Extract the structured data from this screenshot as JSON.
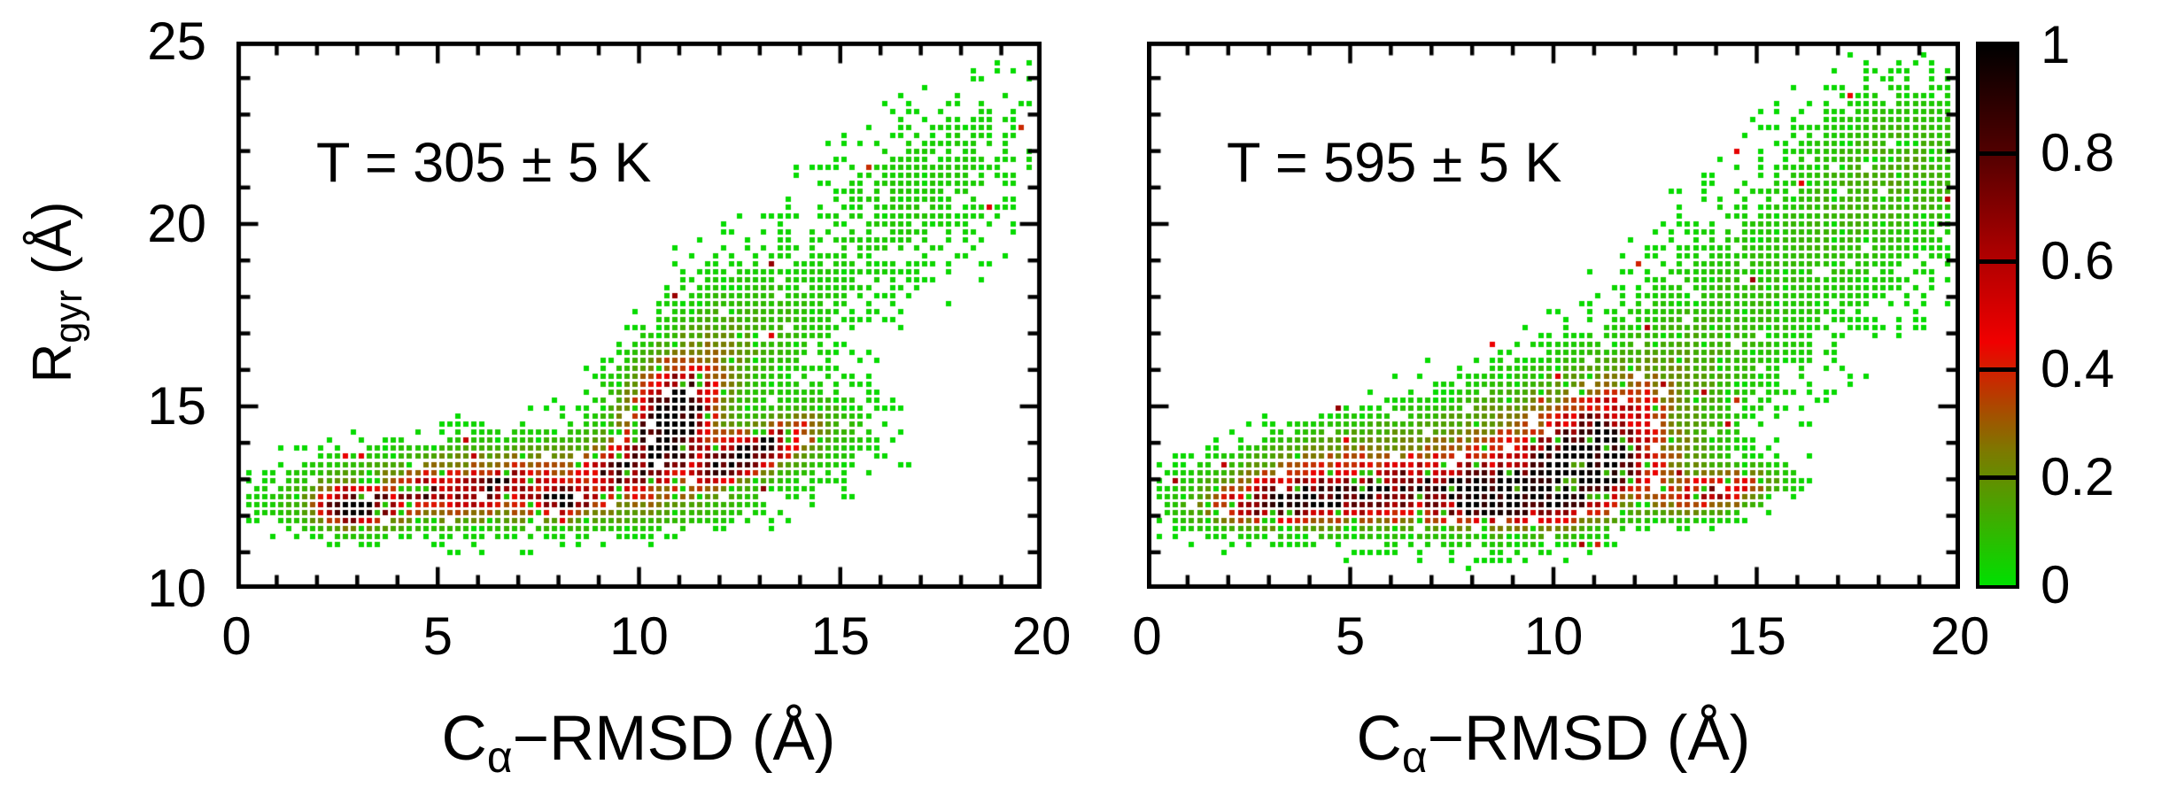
{
  "figure": {
    "background": "#ffffff",
    "axis_color": "#000000"
  },
  "chart_data": {
    "type": "heatmap",
    "subtype": "binned-density-scatter",
    "title": "",
    "x_axis": {
      "label_parts": {
        "base": "C",
        "sub": "α",
        "rest": "−RMSD (Å)"
      },
      "min": 0,
      "max": 20,
      "major_ticks": [
        0,
        5,
        10,
        15,
        20
      ],
      "major_tick_labels": [
        "0",
        "5",
        "10",
        "15",
        "20"
      ],
      "minor_step": 1
    },
    "y_axis": {
      "label_parts": {
        "base": "R",
        "sub": "gyr",
        "rest": " (Å)"
      },
      "min": 10,
      "max": 25,
      "major_ticks": [
        25,
        20,
        15,
        10
      ],
      "major_tick_labels": [
        "25",
        "20",
        "15",
        "10"
      ],
      "minor_step": 1
    },
    "bin_size": {
      "x": 0.2,
      "y": 0.22
    },
    "palette": {
      "stops": [
        [
          0.0,
          [
            0,
            224,
            0
          ]
        ],
        [
          0.25,
          [
            126,
            120,
            0
          ]
        ],
        [
          0.45,
          [
            240,
            0,
            0
          ]
        ],
        [
          0.62,
          [
            170,
            0,
            0
          ]
        ],
        [
          0.8,
          [
            82,
            0,
            0
          ]
        ],
        [
          1.0,
          [
            0,
            0,
            0
          ]
        ]
      ]
    },
    "cluster_format": [
      "center_x_A",
      "center_y_A",
      "sigma_major_A",
      "sigma_minor_A",
      "rotation_deg",
      "peak_density_0to1"
    ],
    "panels": [
      {
        "label": "T = 305 ± 5 K",
        "seed": 1305,
        "clusters": [
          [
            2.95,
            12.25,
            0.55,
            0.3,
            0,
            1.02
          ],
          [
            2.95,
            12.4,
            1.0,
            0.55,
            0,
            0.16
          ],
          [
            4.6,
            12.7,
            0.45,
            0.25,
            10,
            0.42
          ],
          [
            6.4,
            12.8,
            0.8,
            0.28,
            16,
            0.55
          ],
          [
            8.15,
            12.45,
            0.42,
            0.22,
            0,
            0.85
          ],
          [
            9.5,
            13.25,
            0.5,
            0.33,
            10,
            0.55
          ],
          [
            10.8,
            14.55,
            0.78,
            0.5,
            65,
            1.0
          ],
          [
            10.7,
            14.4,
            1.15,
            0.85,
            60,
            0.28
          ],
          [
            13.0,
            13.85,
            0.9,
            0.34,
            22,
            0.78
          ],
          [
            12.2,
            13.45,
            0.55,
            0.3,
            20,
            0.3
          ],
          [
            7.5,
            13.0,
            3.2,
            0.62,
            3,
            0.2
          ],
          [
            8.0,
            13.1,
            3.9,
            0.95,
            5,
            0.09
          ],
          [
            7.5,
            12.35,
            3.0,
            0.4,
            0,
            0.14
          ],
          [
            8.0,
            11.95,
            2.6,
            0.25,
            0,
            0.05
          ],
          [
            5.2,
            13.1,
            1.2,
            0.5,
            10,
            0.1
          ],
          [
            10.9,
            15.7,
            0.9,
            0.7,
            30,
            0.2
          ],
          [
            12.4,
            16.6,
            1.5,
            0.9,
            28,
            0.12
          ],
          [
            11.8,
            13.5,
            0.9,
            0.5,
            20,
            0.13
          ],
          [
            14.5,
            14.5,
            0.9,
            0.8,
            25,
            0.09
          ],
          [
            15.8,
            19.5,
            3.2,
            1.4,
            37,
            0.05
          ],
          [
            17.5,
            21.8,
            2.0,
            1.2,
            35,
            0.035
          ],
          [
            11.8,
            17.9,
            0.9,
            1.0,
            0,
            0.04
          ]
        ]
      },
      {
        "label": "T = 595 ± 5 K",
        "seed": 2595,
        "clusters": [
          [
            3.4,
            12.35,
            1.1,
            0.32,
            4,
            0.6
          ],
          [
            3.6,
            12.75,
            1.5,
            0.55,
            5,
            0.22
          ],
          [
            6.8,
            12.7,
            2.0,
            0.5,
            4,
            0.55
          ],
          [
            8.35,
            12.4,
            0.6,
            0.3,
            5,
            0.75
          ],
          [
            10.6,
            12.95,
            0.95,
            0.55,
            25,
            1.0
          ],
          [
            10.3,
            13.2,
            1.6,
            0.85,
            20,
            0.3
          ],
          [
            11.1,
            14.3,
            1.1,
            0.6,
            42,
            0.45
          ],
          [
            14.0,
            12.65,
            0.9,
            0.35,
            12,
            0.6
          ],
          [
            6.5,
            13.1,
            2.8,
            0.9,
            5,
            0.24
          ],
          [
            10.0,
            14.6,
            2.2,
            1.1,
            15,
            0.2
          ],
          [
            12.8,
            13.3,
            0.9,
            0.55,
            30,
            0.14
          ],
          [
            15.5,
            18.6,
            3.4,
            1.7,
            42,
            0.09
          ],
          [
            18.6,
            21.6,
            1.6,
            1.4,
            40,
            0.11
          ],
          [
            7.5,
            11.95,
            2.4,
            0.22,
            0,
            0.06
          ],
          [
            4.5,
            13.6,
            1.3,
            0.6,
            20,
            0.08
          ],
          [
            13.3,
            16.0,
            1.5,
            1.2,
            40,
            0.06
          ]
        ]
      }
    ],
    "colorbar": {
      "min": 0,
      "max": 1,
      "ticks": [
        {
          "value": 1.0,
          "label": "1"
        },
        {
          "value": 0.8,
          "label": "0.8"
        },
        {
          "value": 0.6,
          "label": "0.6"
        },
        {
          "value": 0.4,
          "label": "0.4"
        },
        {
          "value": 0.2,
          "label": "0.2"
        },
        {
          "value": 0.0,
          "label": "0"
        }
      ]
    }
  }
}
